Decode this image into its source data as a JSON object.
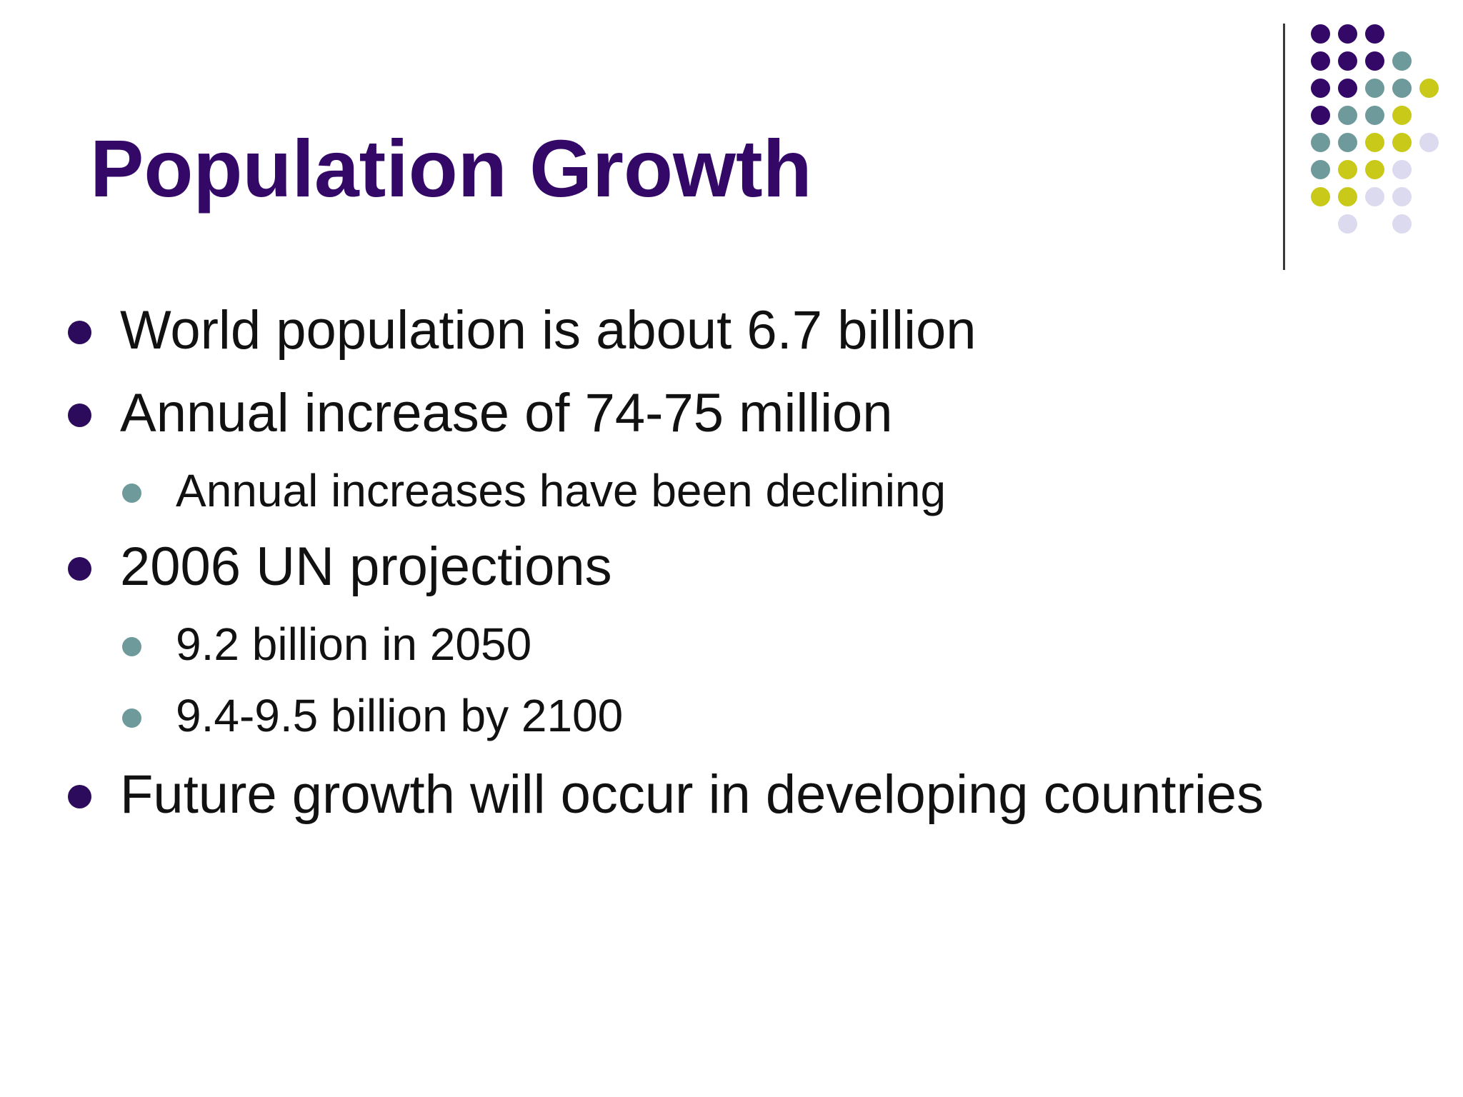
{
  "slide": {
    "title": "Population Growth",
    "colors": {
      "title": "#330867",
      "bullet_primary": "#2c0a5c",
      "bullet_secondary": "#6f9a9c",
      "dot_purple": "#330867",
      "dot_teal": "#6f9a9c",
      "dot_lime": "#c9c919",
      "dot_lavender": "#dcdaee"
    },
    "bullets": [
      {
        "level": 1,
        "text": "World population is about 6.7 billion"
      },
      {
        "level": 1,
        "text": "Annual increase of 74-75 million"
      },
      {
        "level": 2,
        "text": "Annual increases have been declining"
      },
      {
        "level": 1,
        "text": "2006 UN projections"
      },
      {
        "level": 2,
        "text": "9.2 billion in 2050"
      },
      {
        "level": 2,
        "text": "9.4-9.5 billion by 2100"
      },
      {
        "level": 1,
        "text": "Future growth will occur in developing countries"
      }
    ]
  }
}
